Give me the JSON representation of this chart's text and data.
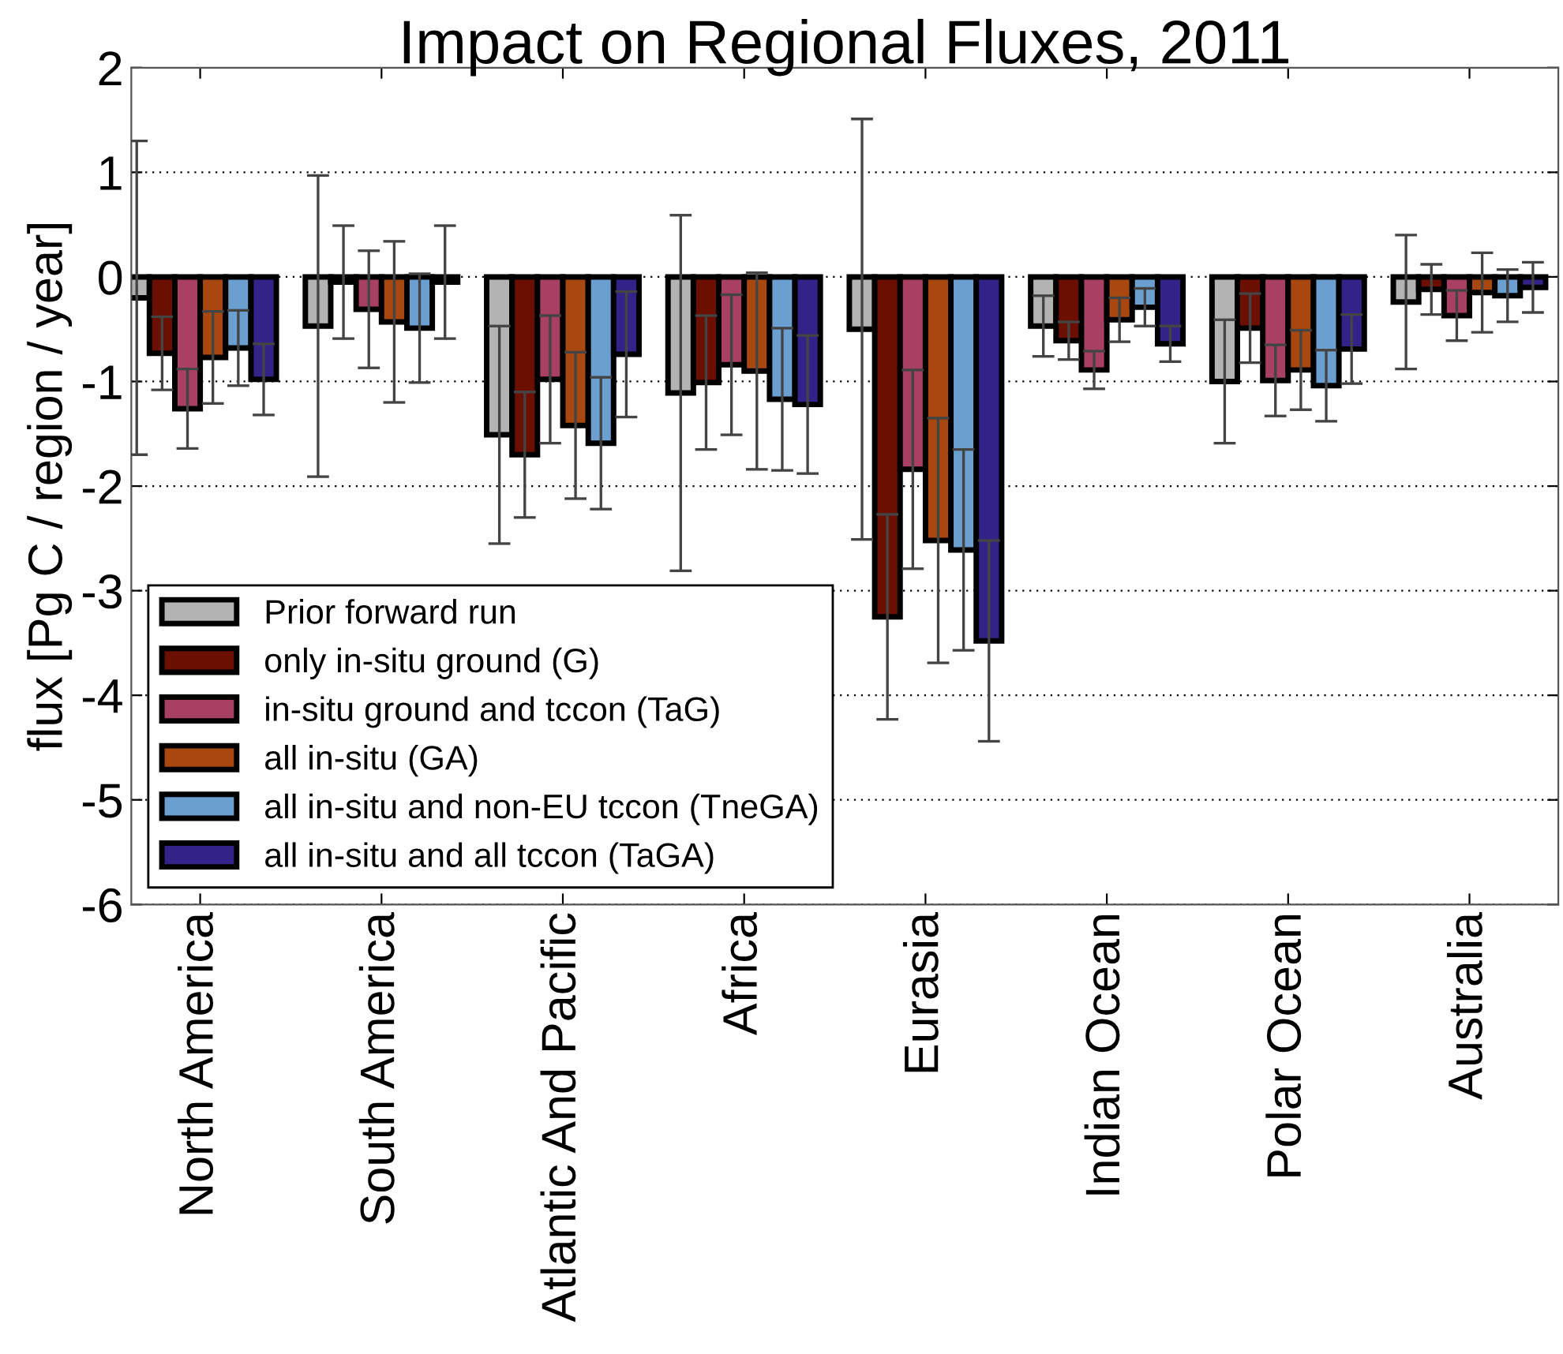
{
  "chart_data": {
    "type": "bar",
    "title": "Impact on Regional Fluxes, 2011",
    "ylabel": "flux [Pg C / region / year]",
    "categories": [
      "North America",
      "South America",
      "Atlantic And Pacific",
      "Africa",
      "Eurasia",
      "Indian Ocean",
      "Polar Ocean",
      "Australia"
    ],
    "series": [
      {
        "name": "Prior forward run",
        "color": "#b3b3b3",
        "values": [
          -0.2,
          -0.47,
          -1.51,
          -1.11,
          -0.5,
          -0.47,
          -1.0,
          -0.24
        ],
        "errors": [
          1.5,
          1.44,
          1.04,
          1.7,
          2.01,
          0.29,
          0.59,
          0.64
        ]
      },
      {
        "name": "only in-situ ground (G)",
        "color": "#6b0f00",
        "values": [
          -0.73,
          -0.05,
          -1.7,
          -1.01,
          -3.25,
          -0.61,
          -0.49,
          -0.12
        ],
        "errors": [
          0.35,
          0.54,
          0.6,
          0.64,
          0.98,
          0.18,
          0.33,
          0.24
        ]
      },
      {
        "name": "in-situ ground and tccon (TaG)",
        "color": "#a84064",
        "values": [
          -1.26,
          -0.31,
          -0.98,
          -0.84,
          -1.84,
          -0.89,
          -0.99,
          -0.37
        ],
        "errors": [
          0.38,
          0.56,
          0.61,
          0.67,
          0.95,
          0.18,
          0.34,
          0.24
        ]
      },
      {
        "name": "all in-situ (GA)",
        "color": "#a84810",
        "values": [
          -0.77,
          -0.43,
          -1.42,
          -0.9,
          -2.52,
          -0.41,
          -0.89,
          -0.15
        ],
        "errors": [
          0.44,
          0.77,
          0.7,
          0.94,
          1.17,
          0.21,
          0.38,
          0.38
        ]
      },
      {
        "name": "all in-situ and non-EU tccon (TneGA)",
        "color": "#6a9fd0",
        "values": [
          -0.68,
          -0.49,
          -1.59,
          -1.17,
          -2.61,
          -0.29,
          -1.04,
          -0.18
        ],
        "errors": [
          0.36,
          0.52,
          0.63,
          0.68,
          0.96,
          0.18,
          0.34,
          0.25
        ]
      },
      {
        "name": "all in-situ and all tccon (TaGA)",
        "color": "#332288",
        "values": [
          -0.98,
          -0.05,
          -0.74,
          -1.22,
          -3.48,
          -0.64,
          -0.69,
          -0.1
        ],
        "errors": [
          0.34,
          0.54,
          0.6,
          0.66,
          0.96,
          0.17,
          0.33,
          0.24
        ]
      }
    ],
    "ylim": [
      -6,
      2
    ],
    "yticks": [
      -6,
      -5,
      -4,
      -3,
      -2,
      -1,
      0,
      1,
      2
    ],
    "grid": "y",
    "legend": "bottom left"
  }
}
